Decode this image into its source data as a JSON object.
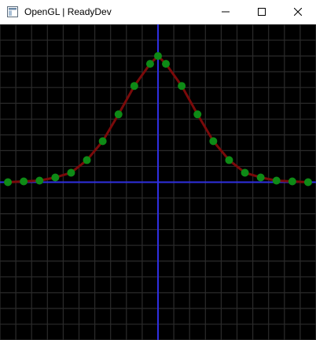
{
  "window": {
    "title": "OpenGL | ReadyDev",
    "app_icon": "window-app-icon",
    "controls": [
      "minimize-icon",
      "maximize-icon",
      "close-icon"
    ]
  },
  "canvas": {
    "background": "#000000",
    "grid_color": "#2b2b2b",
    "axis_color": "#2f2fe0",
    "curve_color": "#7a0a0a",
    "point_color": "#0e8a16",
    "grid": true
  },
  "chart_data": {
    "type": "line",
    "x_range": [
      -10,
      10
    ],
    "y_range": [
      -10,
      10
    ],
    "series": [
      {
        "x": [
          -9.5,
          -8.5,
          -7.5,
          -6.5,
          -5.5,
          -4.5,
          -3.5,
          -2.5,
          -1.5,
          -0.5,
          0,
          0.5,
          1.5,
          2.5,
          3.5,
          4.5,
          5.5,
          6.5,
          7.5,
          8.5,
          9.5
        ],
        "y": [
          0,
          0.05,
          0.1,
          0.3,
          0.6,
          1.4,
          2.6,
          4.3,
          6.1,
          7.5,
          8.0,
          7.5,
          6.1,
          4.3,
          2.6,
          1.4,
          0.6,
          0.3,
          0.1,
          0.05,
          0
        ]
      }
    ]
  }
}
